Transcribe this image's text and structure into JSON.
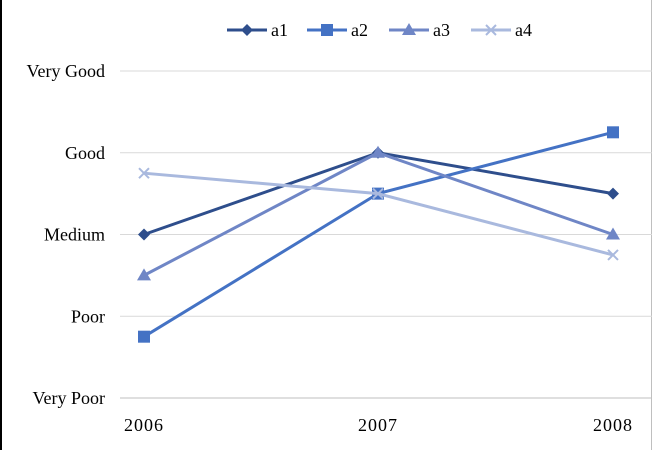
{
  "chart_data": {
    "type": "line",
    "categories": [
      "2006",
      "2007",
      "2008"
    ],
    "y_categories": [
      "Very Poor",
      "Poor",
      "Medium",
      "Good",
      "Very Good"
    ],
    "ylim": [
      0,
      4
    ],
    "grid": true,
    "legend": "top",
    "title": "",
    "xlabel": "",
    "ylabel": "",
    "series": [
      {
        "name": "a1",
        "values": [
          2,
          3,
          2.5
        ],
        "marker": "diamond",
        "color": "#2E4E8C"
      },
      {
        "name": "a2",
        "values": [
          0.75,
          2.5,
          3.25
        ],
        "marker": "square",
        "color": "#4472C4"
      },
      {
        "name": "a3",
        "values": [
          1.5,
          3,
          2
        ],
        "marker": "triangle",
        "color": "#6F86C6"
      },
      {
        "name": "a4",
        "values": [
          2.75,
          2.5,
          1.75
        ],
        "marker": "x",
        "color": "#A9B9DE"
      }
    ]
  }
}
